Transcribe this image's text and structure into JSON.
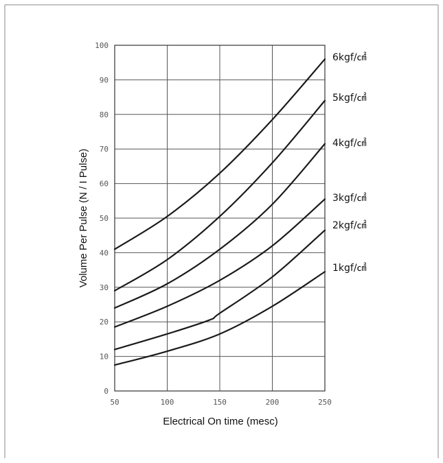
{
  "chart_data": {
    "type": "line",
    "title": "",
    "xlabel": "Electrical On time (mesc)",
    "ylabel": "Volume Per Pulse (N / I Pulse)",
    "xlim": [
      50,
      250
    ],
    "ylim": [
      0,
      100
    ],
    "x_ticks": [
      "50",
      "100",
      "150",
      "200",
      "250"
    ],
    "y_ticks": [
      "0",
      "10",
      "20",
      "30",
      "40",
      "50",
      "60",
      "70",
      "80",
      "90",
      "100"
    ],
    "grid": true,
    "legend": "line-end labels on right",
    "line_color": "#1a1a1a",
    "grid_color": "#555555",
    "series": [
      {
        "name": "6kgf/㎠",
        "x": [
          50,
          100,
          150,
          200,
          250
        ],
        "y": [
          41,
          50.5,
          63,
          78.5,
          96
        ]
      },
      {
        "name": "5kgf/㎠",
        "x": [
          50,
          100,
          150,
          200,
          250
        ],
        "y": [
          29,
          38,
          50.5,
          66,
          84
        ]
      },
      {
        "name": "4kgf/㎠",
        "x": [
          50,
          100,
          150,
          200,
          250
        ],
        "y": [
          24,
          31,
          41,
          54,
          71.5
        ]
      },
      {
        "name": "3kgf/㎠",
        "x": [
          50,
          100,
          150,
          200,
          250
        ],
        "y": [
          18.5,
          24.5,
          32,
          42,
          55.5
        ]
      },
      {
        "name": "2kgf/㎠",
        "x": [
          50,
          100,
          140,
          150,
          200,
          250
        ],
        "y": [
          12,
          16.5,
          20.5,
          22.5,
          33,
          46.5
        ]
      },
      {
        "name": "1kgf/㎠",
        "x": [
          50,
          100,
          150,
          200,
          250
        ],
        "y": [
          7.5,
          11.5,
          16.5,
          24.5,
          34.5
        ]
      }
    ]
  }
}
